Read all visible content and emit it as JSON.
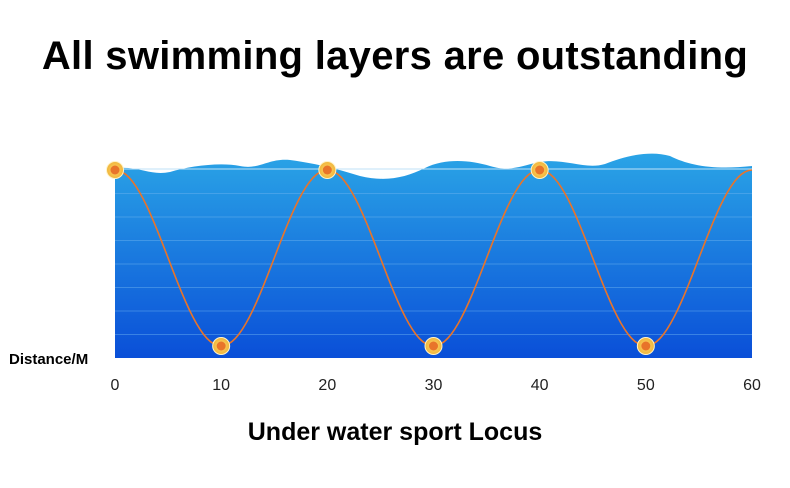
{
  "headline": "All swimming layers are outstanding",
  "chart_data": {
    "type": "line",
    "title": "Under water sport Locus",
    "xlabel": "",
    "ylabel": "Distance/M",
    "x_ticks": [
      "0",
      "10",
      "20",
      "30",
      "40",
      "50",
      "60"
    ],
    "xlim": [
      0,
      60
    ],
    "ylim": [
      0,
      1
    ],
    "grid": true,
    "series": [
      {
        "color": "#e8742a",
        "marker_color": "#f5a31a",
        "points": [
          {
            "x": 0,
            "y": 1
          },
          {
            "x": 10,
            "y": 0
          },
          {
            "x": 20,
            "y": 1
          },
          {
            "x": 30,
            "y": 0
          },
          {
            "x": 40,
            "y": 1
          },
          {
            "x": 50,
            "y": 0
          },
          {
            "x": 60,
            "y": 1
          }
        ],
        "markers_at": [
          0,
          10,
          20,
          30,
          40,
          50
        ]
      }
    ]
  },
  "colors": {
    "water_top": "#2aa4e6",
    "water_bottom": "#0a4fd8",
    "grid": "#6fb4f0"
  }
}
